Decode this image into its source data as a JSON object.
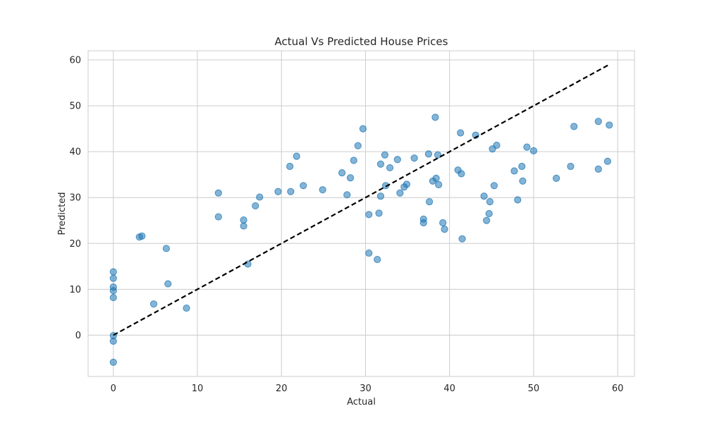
{
  "chart_data": {
    "type": "scatter",
    "title": "Actual Vs Predicted House Prices",
    "xlabel": "Actual",
    "ylabel": "Predicted",
    "xlim": [
      -3,
      62
    ],
    "ylim": [
      -9,
      62
    ],
    "xticks": [
      0,
      10,
      20,
      30,
      40,
      50,
      60
    ],
    "yticks": [
      0,
      10,
      20,
      30,
      40,
      50,
      60
    ],
    "grid": true,
    "point_color": "#1f77b4",
    "line_color": "#000000",
    "reference_line": {
      "style": "dashed",
      "from": [
        0,
        0
      ],
      "to": [
        59,
        59
      ]
    },
    "points": [
      [
        0,
        13.8
      ],
      [
        0,
        12.4
      ],
      [
        0,
        10.5
      ],
      [
        0,
        9.7
      ],
      [
        0,
        8.2
      ],
      [
        0,
        -0.1
      ],
      [
        0,
        -1.3
      ],
      [
        0,
        -5.9
      ],
      [
        3.1,
        21.4
      ],
      [
        3.4,
        21.6
      ],
      [
        4.8,
        6.8
      ],
      [
        6.3,
        18.9
      ],
      [
        6.5,
        11.2
      ],
      [
        8.7,
        5.9
      ],
      [
        12.5,
        31.0
      ],
      [
        12.5,
        25.8
      ],
      [
        15.5,
        25.1
      ],
      [
        15.5,
        23.8
      ],
      [
        16.0,
        15.5
      ],
      [
        16.9,
        28.2
      ],
      [
        17.4,
        30.1
      ],
      [
        19.6,
        31.3
      ],
      [
        21.0,
        36.8
      ],
      [
        21.1,
        31.3
      ],
      [
        21.8,
        39.0
      ],
      [
        22.6,
        32.6
      ],
      [
        24.9,
        31.7
      ],
      [
        27.2,
        35.4
      ],
      [
        27.8,
        30.6
      ],
      [
        28.2,
        34.3
      ],
      [
        28.6,
        38.1
      ],
      [
        29.1,
        41.3
      ],
      [
        29.7,
        45.0
      ],
      [
        30.4,
        26.3
      ],
      [
        30.4,
        17.9
      ],
      [
        31.4,
        16.5
      ],
      [
        31.6,
        26.6
      ],
      [
        31.8,
        37.3
      ],
      [
        31.8,
        30.3
      ],
      [
        32.3,
        39.3
      ],
      [
        32.4,
        32.6
      ],
      [
        32.9,
        36.5
      ],
      [
        33.8,
        38.3
      ],
      [
        34.1,
        31.0
      ],
      [
        34.6,
        32.3
      ],
      [
        34.9,
        32.9
      ],
      [
        35.8,
        38.6
      ],
      [
        36.9,
        25.3
      ],
      [
        36.9,
        24.5
      ],
      [
        37.5,
        39.5
      ],
      [
        37.6,
        29.1
      ],
      [
        38.0,
        33.6
      ],
      [
        38.3,
        47.5
      ],
      [
        38.4,
        34.2
      ],
      [
        38.6,
        39.3
      ],
      [
        38.7,
        32.8
      ],
      [
        39.2,
        24.5
      ],
      [
        39.4,
        23.1
      ],
      [
        41.0,
        36.0
      ],
      [
        41.3,
        44.1
      ],
      [
        41.4,
        35.2
      ],
      [
        41.5,
        21.0
      ],
      [
        43.1,
        43.6
      ],
      [
        44.1,
        30.3
      ],
      [
        44.4,
        25.0
      ],
      [
        44.7,
        26.5
      ],
      [
        44.8,
        29.1
      ],
      [
        45.1,
        40.6
      ],
      [
        45.3,
        32.6
      ],
      [
        45.6,
        41.4
      ],
      [
        47.7,
        35.8
      ],
      [
        48.1,
        29.5
      ],
      [
        48.6,
        36.8
      ],
      [
        48.7,
        33.6
      ],
      [
        49.2,
        41.0
      ],
      [
        50.0,
        40.2
      ],
      [
        52.7,
        34.2
      ],
      [
        54.4,
        36.8
      ],
      [
        54.8,
        45.5
      ],
      [
        57.7,
        36.2
      ],
      [
        57.7,
        46.6
      ],
      [
        58.8,
        37.9
      ],
      [
        59.0,
        45.8
      ]
    ]
  }
}
